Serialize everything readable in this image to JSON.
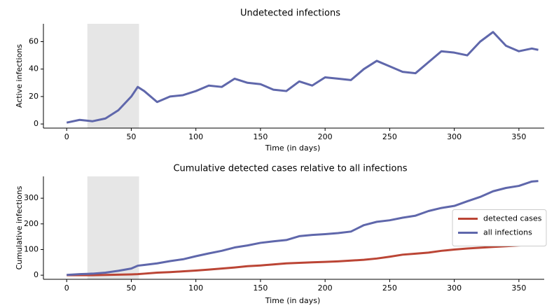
{
  "chart_data": [
    {
      "type": "line",
      "title": "Undetected infections",
      "xlabel": "Time (in days)",
      "ylabel": "Active infections",
      "x": [
        0,
        10,
        20,
        30,
        40,
        50,
        55,
        60,
        70,
        80,
        90,
        100,
        110,
        120,
        130,
        140,
        150,
        160,
        170,
        180,
        190,
        200,
        210,
        220,
        230,
        240,
        250,
        260,
        270,
        280,
        290,
        300,
        310,
        320,
        330,
        340,
        350,
        360,
        365
      ],
      "series": [
        {
          "color": "#5f67ab",
          "values": [
            1,
            3,
            2,
            4,
            10,
            20,
            27,
            24,
            16,
            20,
            21,
            24,
            28,
            27,
            33,
            30,
            29,
            25,
            24,
            31,
            28,
            34,
            33,
            32,
            40,
            46,
            42,
            38,
            37,
            45,
            53,
            52,
            50,
            60,
            67,
            57,
            53,
            55,
            54
          ]
        }
      ],
      "xlim": [
        -18,
        375
      ],
      "ylim": [
        -3,
        73
      ],
      "xticks": [
        0,
        50,
        100,
        150,
        200,
        250,
        300,
        350
      ],
      "yticks": [
        0,
        20,
        40,
        60
      ],
      "shaded_span": [
        16,
        56
      ]
    },
    {
      "type": "line",
      "title": "Cumulative detected cases relative to all infections",
      "xlabel": "Time (in days)",
      "ylabel": "Cumulative infections",
      "x": [
        0,
        10,
        20,
        30,
        40,
        50,
        55,
        60,
        70,
        80,
        90,
        100,
        110,
        120,
        130,
        140,
        150,
        160,
        170,
        180,
        190,
        200,
        210,
        220,
        230,
        240,
        250,
        260,
        270,
        280,
        290,
        300,
        310,
        320,
        330,
        340,
        350,
        360,
        365
      ],
      "series": [
        {
          "name": "detected cases",
          "color": "#bb4535",
          "values": [
            0,
            0,
            0,
            1,
            2,
            3,
            4,
            6,
            10,
            12,
            15,
            18,
            22,
            26,
            30,
            35,
            38,
            42,
            46,
            48,
            50,
            52,
            54,
            57,
            60,
            65,
            72,
            80,
            84,
            88,
            95,
            100,
            104,
            107,
            110,
            113,
            116,
            118,
            118
          ]
        },
        {
          "name": "all infections",
          "color": "#5f67ab",
          "values": [
            1,
            4,
            6,
            10,
            17,
            26,
            37,
            40,
            46,
            55,
            62,
            74,
            85,
            95,
            108,
            116,
            126,
            132,
            137,
            152,
            157,
            160,
            164,
            170,
            195,
            208,
            214,
            224,
            232,
            250,
            262,
            270,
            288,
            305,
            327,
            340,
            348,
            365,
            367
          ]
        }
      ],
      "xlim": [
        -18,
        375
      ],
      "ylim": [
        -16,
        385
      ],
      "xticks": [
        0,
        50,
        100,
        150,
        200,
        250,
        300,
        350
      ],
      "yticks": [
        0,
        100,
        200,
        300
      ],
      "shaded_span": [
        16,
        56
      ],
      "legend": "center right"
    }
  ]
}
